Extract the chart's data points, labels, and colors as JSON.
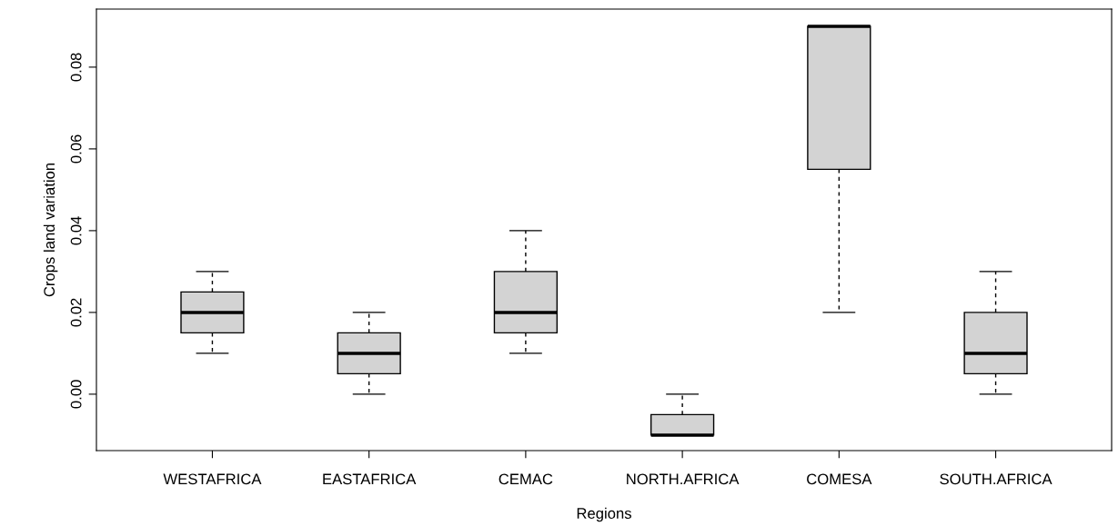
{
  "chart_data": {
    "type": "box",
    "xlabel": "Regions",
    "ylabel": "Crops land variation",
    "categories": [
      "WESTAFRICA",
      "EASTAFRICA",
      "CEMAC",
      "NORTH.AFRICA",
      "COMESA",
      "SOUTH.AFRICA"
    ],
    "boxes": [
      {
        "low": 0.01,
        "q1": 0.015,
        "median": 0.02,
        "q3": 0.025,
        "high": 0.03
      },
      {
        "low": 0.0,
        "q1": 0.005,
        "median": 0.01,
        "q3": 0.015,
        "high": 0.02
      },
      {
        "low": 0.01,
        "q1": 0.015,
        "median": 0.02,
        "q3": 0.03,
        "high": 0.04
      },
      {
        "low": -0.01,
        "q1": -0.01,
        "median": -0.01,
        "q3": -0.005,
        "high": 0.0
      },
      {
        "low": 0.02,
        "q1": 0.055,
        "median": 0.09,
        "q3": 0.09,
        "high": 0.09
      },
      {
        "low": 0.0,
        "q1": 0.005,
        "median": 0.01,
        "q3": 0.02,
        "high": 0.03
      }
    ],
    "color": "#d3d3d3",
    "ylim": [
      -0.0138,
      0.0942
    ],
    "yticks": [
      {
        "value": 0.0,
        "label": "0.00"
      },
      {
        "value": 0.02,
        "label": "0.02"
      },
      {
        "value": 0.04,
        "label": "0.04"
      },
      {
        "value": 0.06,
        "label": "0.06"
      },
      {
        "value": 0.08,
        "label": "0.08"
      }
    ],
    "grid": false,
    "legend": false
  }
}
